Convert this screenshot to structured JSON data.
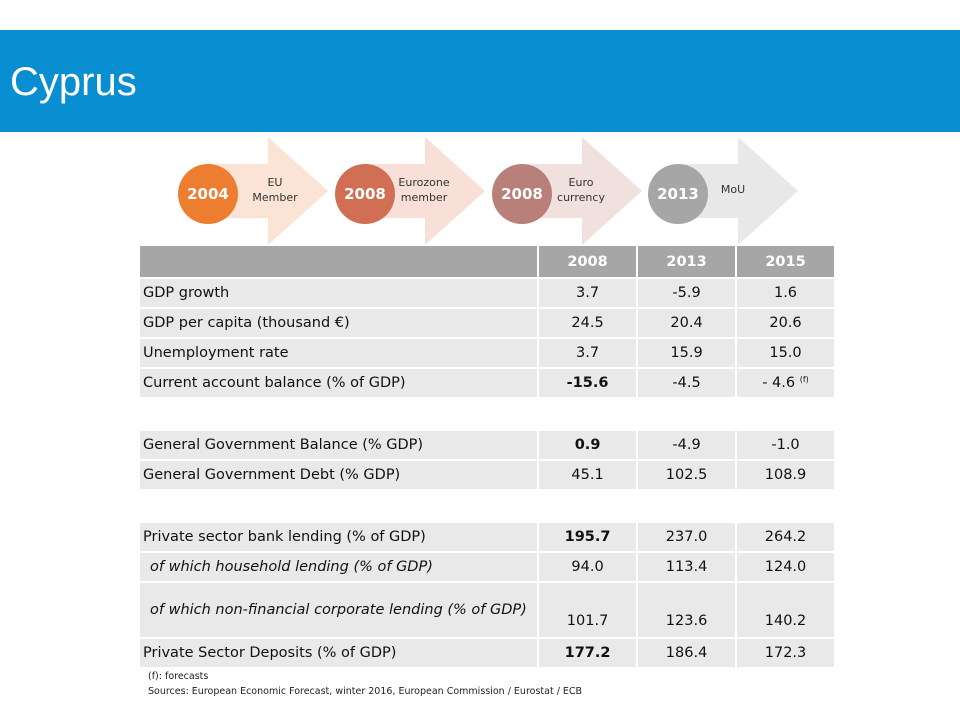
{
  "title": "Cyprus",
  "timeline": [
    {
      "year": "2004",
      "label_lines": [
        "EU",
        "Member"
      ],
      "circle_color": "#ed7d31",
      "arrow_color": "#fbe3d6"
    },
    {
      "year": "2008",
      "label_lines": [
        "Eurozone",
        "member"
      ],
      "circle_color": "#d16f55",
      "arrow_color": "#f8e0d8"
    },
    {
      "year": "2008",
      "label_lines": [
        "Euro",
        "currency"
      ],
      "circle_color": "#b88078",
      "arrow_color": "#f1e1de"
    },
    {
      "year": "2013",
      "label_lines": [
        "MoU"
      ],
      "circle_color": "#a6a6a6",
      "arrow_color": "#e8e8e8"
    }
  ],
  "table": {
    "years": [
      "2008",
      "2013",
      "2015"
    ],
    "rows": [
      {
        "label": "GDP growth",
        "values": [
          "3.7",
          "-5.9",
          "1.6"
        ]
      },
      {
        "label": "GDP per capita (thousand €)",
        "values": [
          "24.5",
          "20.4",
          "20.6"
        ]
      },
      {
        "label": "Unemployment rate",
        "values": [
          "3.7",
          "15.9",
          "15.0"
        ]
      },
      {
        "label": "Current account balance (% of GDP)",
        "values": [
          "-15.6",
          "-4.5",
          "- 4.6"
        ],
        "note": "(f)"
      },
      {
        "label": "General Government Balance (% GDP)",
        "values": [
          "0.9",
          "-4.9",
          "-1.0"
        ]
      },
      {
        "label": "General Government Debt (% GDP)",
        "values": [
          "45.1",
          "102.5",
          "108.9"
        ]
      },
      {
        "label": "Private sector bank lending (% of GDP)",
        "values": [
          "195.7",
          "237.0",
          "264.2"
        ]
      },
      {
        "label": "of which household lending (% of GDP)",
        "values": [
          "94.0",
          "113.4",
          "124.0"
        ]
      },
      {
        "label": "of which non-financial corporate lending (% of GDP)",
        "values": [
          "101.7",
          "123.6",
          "140.2"
        ]
      },
      {
        "label": "Private Sector Deposits (% of GDP)",
        "values": [
          "177.2",
          "186.4",
          "172.3"
        ]
      }
    ]
  },
  "notes": {
    "forecast": "(f): forecasts",
    "sources": "Sources: European Economic Forecast, winter 2016, European Commission / Eurostat / ECB"
  }
}
